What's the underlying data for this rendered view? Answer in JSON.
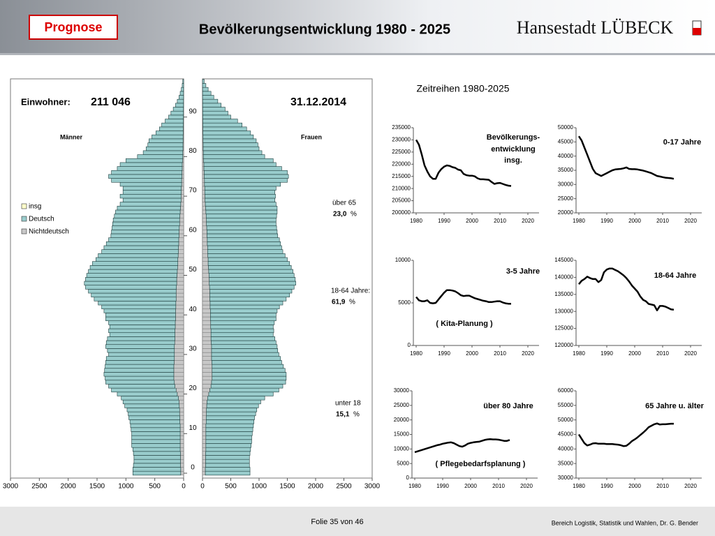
{
  "header": {
    "badge": "Prognose",
    "title": "Bevölkerungsentwicklung 1980 - 2025",
    "brand": "Hansestadt LÜBECK"
  },
  "section_title": "Zeitreihen 1980-2025",
  "footer": {
    "slide": "Folie 35 von 46",
    "author": "Bereich Logistik, Statistik und Wahlen, Dr. G. Bender"
  },
  "chart_data": [
    {
      "type": "pyramid",
      "label": "Einwohner:",
      "population": "211 046",
      "date": "31.12.2014",
      "legend": [
        {
          "name": "insg",
          "color": "#ffffcc"
        },
        {
          "name": "Deutsch",
          "color": "#99cccc"
        },
        {
          "name": "Nichtdeutsch",
          "color": "#c8c8c8"
        }
      ],
      "ages": [
        0,
        1,
        2,
        3,
        4,
        5,
        6,
        7,
        8,
        9,
        10,
        11,
        12,
        13,
        14,
        15,
        16,
        17,
        18,
        19,
        20,
        21,
        22,
        23,
        24,
        25,
        26,
        27,
        28,
        29,
        30,
        31,
        32,
        33,
        34,
        35,
        36,
        37,
        38,
        39,
        40,
        41,
        42,
        43,
        44,
        45,
        46,
        47,
        48,
        49,
        50,
        51,
        52,
        53,
        54,
        55,
        56,
        57,
        58,
        59,
        60,
        61,
        62,
        63,
        64,
        65,
        66,
        67,
        68,
        69,
        70,
        71,
        72,
        73,
        74,
        75,
        76,
        77,
        78,
        79,
        80,
        81,
        82,
        83,
        84,
        85,
        86,
        87,
        88,
        89,
        90,
        91,
        92,
        93,
        94,
        95,
        96,
        97,
        98,
        99
      ],
      "ylim": [
        0,
        100
      ],
      "yticks": [
        0,
        10,
        20,
        30,
        40,
        50,
        60,
        70,
        80,
        90
      ],
      "men_xlim": [
        3000,
        0
      ],
      "men_xticks": [
        3000,
        2500,
        2000,
        1500,
        1000,
        500,
        0
      ],
      "women_xlim": [
        0,
        3000
      ],
      "women_xticks": [
        0,
        500,
        1000,
        1500,
        2000,
        2500,
        3000
      ],
      "men": {
        "label": "Männer",
        "deutsch": [
          830,
          830,
          815,
          805,
          805,
          815,
          820,
          840,
          840,
          840,
          840,
          850,
          860,
          865,
          885,
          890,
          910,
          945,
          970,
          990,
          1040,
          1120,
          1150,
          1190,
          1190,
          1210,
          1200,
          1190,
          1185,
          1180,
          1140,
          1160,
          1190,
          1185,
          1170,
          1130,
          1150,
          1135,
          1155,
          1210,
          1210,
          1240,
          1285,
          1345,
          1420,
          1470,
          1520,
          1575,
          1600,
          1580,
          1565,
          1540,
          1515,
          1480,
          1420,
          1385,
          1330,
          1290,
          1255,
          1215,
          1180,
          1170,
          1165,
          1160,
          1150,
          1135,
          1120,
          1095,
          1050,
          1005,
          1055,
          1010,
          1010,
          1065,
          1215,
          1270,
          1220,
          1125,
          1075,
          980,
          785,
          685,
          638,
          608,
          590,
          540,
          472,
          412,
          374,
          315,
          256,
          217,
          177,
          138,
          108,
          79,
          59,
          39,
          25,
          15
        ],
        "nichtdeutsch": [
          50,
          50,
          55,
          55,
          55,
          55,
          60,
          60,
          60,
          60,
          60,
          60,
          60,
          65,
          65,
          70,
          70,
          75,
          80,
          90,
          110,
          130,
          150,
          160,
          170,
          170,
          170,
          170,
          165,
          160,
          160,
          160,
          160,
          155,
          150,
          150,
          150,
          145,
          145,
          140,
          140,
          140,
          135,
          135,
          130,
          130,
          130,
          125,
          120,
          120,
          115,
          110,
          105,
          100,
          100,
          95,
          90,
          90,
          85,
          85,
          80,
          80,
          75,
          70,
          70,
          65,
          60,
          55,
          50,
          45,
          45,
          40,
          40,
          35,
          35,
          30,
          30,
          25,
          25,
          20,
          15,
          15,
          12,
          12,
          10,
          10,
          8,
          8,
          6,
          5,
          4,
          3,
          3,
          2,
          2,
          1,
          1,
          1,
          0,
          0
        ]
      },
      "women": {
        "label": "Frauen",
        "deutsch": [
          790,
          790,
          775,
          775,
          775,
          785,
          790,
          800,
          810,
          810,
          820,
          830,
          840,
          845,
          855,
          870,
          890,
          915,
          950,
          1010,
          1140,
          1220,
          1270,
          1310,
          1310,
          1310,
          1290,
          1260,
          1235,
          1220,
          1190,
          1170,
          1160,
          1145,
          1130,
          1100,
          1110,
          1105,
          1125,
          1160,
          1160,
          1180,
          1225,
          1285,
          1350,
          1410,
          1450,
          1495,
          1530,
          1520,
          1505,
          1490,
          1465,
          1440,
          1400,
          1365,
          1330,
          1310,
          1295,
          1275,
          1250,
          1240,
          1235,
          1230,
          1230,
          1245,
          1260,
          1265,
          1250,
          1235,
          1245,
          1240,
          1260,
          1345,
          1465,
          1490,
          1470,
          1375,
          1275,
          1230,
          1085,
          1035,
          988,
          968,
          940,
          890,
          842,
          772,
          694,
          615,
          496,
          447,
          397,
          328,
          268,
          199,
          149,
          99,
          60,
          30
        ],
        "nichtdeutsch": [
          50,
          50,
          55,
          55,
          55,
          55,
          60,
          60,
          60,
          60,
          60,
          60,
          60,
          65,
          65,
          70,
          70,
          75,
          80,
          90,
          110,
          130,
          150,
          160,
          170,
          170,
          170,
          170,
          165,
          160,
          160,
          160,
          160,
          155,
          150,
          150,
          150,
          145,
          145,
          140,
          140,
          140,
          135,
          135,
          130,
          130,
          130,
          125,
          120,
          120,
          115,
          110,
          105,
          100,
          100,
          95,
          90,
          90,
          85,
          85,
          80,
          80,
          75,
          70,
          70,
          65,
          60,
          55,
          50,
          45,
          45,
          40,
          40,
          35,
          35,
          30,
          30,
          25,
          25,
          20,
          15,
          15,
          12,
          12,
          10,
          10,
          8,
          8,
          6,
          5,
          4,
          3,
          3,
          2,
          2,
          1,
          1,
          1,
          0,
          0
        ]
      },
      "annotations": [
        {
          "label": "über 65",
          "value": "23,0",
          "unit": "%"
        },
        {
          "label": "18-64 Jahre:",
          "value": "61,9",
          "unit": "%"
        },
        {
          "label": "unter 18",
          "value": "15,1",
          "unit": "%"
        }
      ]
    },
    {
      "type": "line",
      "annotations": [
        "Bevölkerungs-",
        "entwicklung",
        "insg."
      ],
      "color": "#000000",
      "x": [
        1980,
        1981,
        1982,
        1983,
        1984,
        1985,
        1986,
        1987,
        1988,
        1989,
        1990,
        1991,
        1992,
        1993,
        1994,
        1995,
        1996,
        1997,
        1998,
        1999,
        2000,
        2001,
        2002,
        2003,
        2004,
        2005,
        2006,
        2007,
        2008,
        2009,
        2010,
        2011,
        2012,
        2013,
        2014
      ],
      "values": [
        230000,
        228000,
        224000,
        219500,
        217000,
        215000,
        214000,
        214000,
        216500,
        218000,
        219000,
        219500,
        219300,
        218800,
        218500,
        217800,
        217500,
        216000,
        215500,
        215300,
        215300,
        215000,
        214200,
        213800,
        213800,
        213700,
        213600,
        212700,
        211900,
        212200,
        212300,
        211900,
        211500,
        211200,
        211046
      ],
      "xlim": [
        1979,
        2024
      ],
      "xticks": [
        1980,
        1990,
        2000,
        2010,
        2020
      ],
      "ylim": [
        200000,
        235000
      ],
      "yticks": [
        200000,
        205000,
        210000,
        215000,
        220000,
        225000,
        230000,
        235000
      ]
    },
    {
      "type": "line",
      "annotations": [
        "0-17 Jahre"
      ],
      "color": "#000000",
      "x": [
        1980,
        1981,
        1982,
        1983,
        1984,
        1985,
        1986,
        1987,
        1988,
        1989,
        1990,
        1991,
        1992,
        1993,
        1994,
        1995,
        1996,
        1997,
        1998,
        1999,
        2000,
        2001,
        2002,
        2003,
        2004,
        2005,
        2006,
        2007,
        2008,
        2009,
        2010,
        2011,
        2012,
        2013,
        2014
      ],
      "values": [
        47000,
        45500,
        43000,
        40500,
        38000,
        35500,
        34000,
        33500,
        33000,
        33500,
        34000,
        34500,
        35000,
        35300,
        35400,
        35500,
        35700,
        36000,
        35500,
        35400,
        35400,
        35300,
        35100,
        34900,
        34600,
        34300,
        34000,
        33500,
        33000,
        32800,
        32600,
        32400,
        32300,
        32200,
        32000
      ],
      "xlim": [
        1979,
        2024
      ],
      "xticks": [
        1980,
        1990,
        2000,
        2010,
        2020
      ],
      "ylim": [
        20000,
        50000
      ],
      "yticks": [
        20000,
        25000,
        30000,
        35000,
        40000,
        45000,
        50000
      ]
    },
    {
      "type": "line",
      "annotations": [
        "3-5 Jahre",
        "( Kita-Planung )"
      ],
      "color": "#000000",
      "x": [
        1980,
        1981,
        1982,
        1983,
        1984,
        1985,
        1986,
        1987,
        1988,
        1989,
        1990,
        1991,
        1992,
        1993,
        1994,
        1995,
        1996,
        1997,
        1998,
        1999,
        2000,
        2001,
        2002,
        2003,
        2004,
        2005,
        2006,
        2007,
        2008,
        2009,
        2010,
        2011,
        2012,
        2013,
        2014
      ],
      "values": [
        5700,
        5300,
        5200,
        5200,
        5300,
        5000,
        4950,
        5000,
        5400,
        5800,
        6200,
        6500,
        6500,
        6450,
        6350,
        6150,
        5900,
        5800,
        5850,
        5850,
        5700,
        5550,
        5450,
        5350,
        5250,
        5200,
        5100,
        5100,
        5150,
        5200,
        5200,
        5050,
        4950,
        4900,
        4900
      ],
      "xlim": [
        1979,
        2024
      ],
      "xticks": [
        1980,
        1990,
        2000,
        2010,
        2020
      ],
      "ylim": [
        0,
        10000
      ],
      "yticks": [
        0,
        5000,
        10000
      ]
    },
    {
      "type": "line",
      "annotations": [
        "18-64 Jahre"
      ],
      "color": "#000000",
      "x": [
        1980,
        1981,
        1982,
        1983,
        1984,
        1985,
        1986,
        1987,
        1988,
        1989,
        1990,
        1991,
        1992,
        1993,
        1994,
        1995,
        1996,
        1997,
        1998,
        1999,
        2000,
        2001,
        2002,
        2003,
        2004,
        2005,
        2006,
        2007,
        2008,
        2009,
        2010,
        2011,
        2012,
        2013,
        2014
      ],
      "values": [
        138000,
        139000,
        139500,
        140200,
        139800,
        139500,
        139500,
        138600,
        139200,
        141500,
        142300,
        142600,
        142600,
        142200,
        141800,
        141200,
        140600,
        139800,
        138800,
        137600,
        136700,
        135800,
        134400,
        133400,
        133000,
        132200,
        132000,
        131800,
        130300,
        131600,
        131600,
        131400,
        131000,
        130600,
        130500
      ],
      "xlim": [
        1979,
        2024
      ],
      "xticks": [
        1980,
        1990,
        2000,
        2010,
        2020
      ],
      "ylim": [
        120000,
        145000
      ],
      "yticks": [
        120000,
        125000,
        130000,
        135000,
        140000,
        145000
      ]
    },
    {
      "type": "line",
      "annotations": [
        "über 80 Jahre",
        "( Pflegebedarfsplanung )"
      ],
      "color": "#000000",
      "x": [
        1980,
        1981,
        1982,
        1983,
        1984,
        1985,
        1986,
        1987,
        1988,
        1989,
        1990,
        1991,
        1992,
        1993,
        1994,
        1995,
        1996,
        1997,
        1998,
        1999,
        2000,
        2001,
        2002,
        2003,
        2004,
        2005,
        2006,
        2007,
        2008,
        2009,
        2010,
        2011,
        2012,
        2013,
        2014
      ],
      "values": [
        8900,
        9200,
        9500,
        9800,
        10100,
        10400,
        10700,
        11000,
        11300,
        11500,
        11800,
        12000,
        12200,
        12300,
        12000,
        11500,
        11000,
        10800,
        11200,
        11800,
        12100,
        12300,
        12400,
        12500,
        12800,
        13100,
        13300,
        13400,
        13300,
        13300,
        13200,
        13000,
        12800,
        12800,
        13100
      ],
      "xlim": [
        1979,
        2024
      ],
      "xticks": [
        1980,
        1990,
        2000,
        2010,
        2020
      ],
      "ylim": [
        0,
        30000
      ],
      "yticks": [
        0,
        5000,
        10000,
        15000,
        20000,
        25000,
        30000
      ]
    },
    {
      "type": "line",
      "annotations": [
        "65 Jahre u. älter"
      ],
      "color": "#000000",
      "x": [
        1980,
        1981,
        1982,
        1983,
        1984,
        1985,
        1986,
        1987,
        1988,
        1989,
        1990,
        1991,
        1992,
        1993,
        1994,
        1995,
        1996,
        1997,
        1998,
        1999,
        2000,
        2001,
        2002,
        2003,
        2004,
        2005,
        2006,
        2007,
        2008,
        2009,
        2010,
        2011,
        2012,
        2013,
        2014
      ],
      "values": [
        45000,
        43500,
        42000,
        41200,
        41500,
        41900,
        42000,
        41800,
        41800,
        41800,
        41700,
        41700,
        41700,
        41600,
        41500,
        41300,
        41000,
        41100,
        41800,
        42700,
        43300,
        44000,
        44800,
        45600,
        46500,
        47500,
        48000,
        48500,
        48800,
        48400,
        48500,
        48500,
        48600,
        48700,
        48700
      ],
      "xlim": [
        1979,
        2024
      ],
      "xticks": [
        1980,
        1990,
        2000,
        2010,
        2020
      ],
      "ylim": [
        30000,
        60000
      ],
      "yticks": [
        30000,
        35000,
        40000,
        45000,
        50000,
        55000,
        60000
      ]
    }
  ]
}
